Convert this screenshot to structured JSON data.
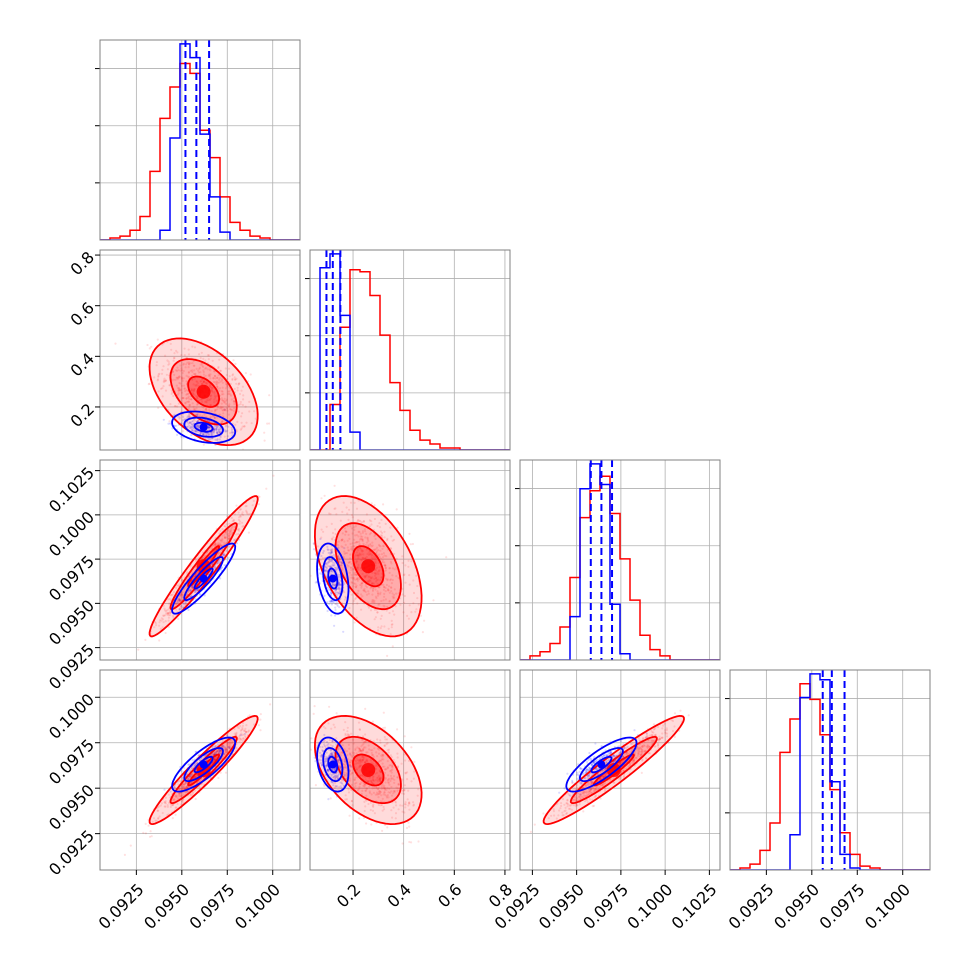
{
  "chart_data": {
    "type": "corner",
    "colors": {
      "series_a": "#ff0000",
      "series_b": "#0000ff",
      "grid": "#b0b0b0",
      "frame": "#808080"
    },
    "grid": true,
    "series": [
      {
        "color_key": "series_a",
        "style": "wide posterior (samples, filled contours, step histogram)"
      },
      {
        "color_key": "series_b",
        "style": "narrow posterior (samples, contours, step histogram with dashed quantile lines)"
      }
    ],
    "parameters": [
      {
        "range": [
          0.0905,
          0.1015
        ],
        "ticks": [
          "0.0925",
          "0.0950",
          "0.0975",
          "0.1000"
        ],
        "tick_values": [
          0.0925,
          0.095,
          0.0975,
          0.1
        ]
      },
      {
        "range": [
          0.03,
          0.82
        ],
        "ticks": [
          "0.2",
          "0.4",
          "0.6",
          "0.8"
        ],
        "tick_values": [
          0.2,
          0.4,
          0.6,
          0.8
        ]
      },
      {
        "range": [
          0.0918,
          0.1031
        ],
        "ticks": [
          "0.0925",
          "0.0950",
          "0.0975",
          "0.1000",
          "0.1025"
        ],
        "tick_values": [
          0.0925,
          0.095,
          0.0975,
          0.1,
          0.1025
        ]
      },
      {
        "range": [
          0.0905,
          0.1015
        ],
        "ticks": [
          "0.0925",
          "0.0950",
          "0.0975",
          "0.1000"
        ],
        "tick_values": [
          0.0925,
          0.095,
          0.0975,
          0.1
        ]
      }
    ],
    "histograms": [
      {
        "param": 0,
        "bins": [
          0.0905,
          0.1015,
          20
        ],
        "series_a": [
          0.0,
          0.01,
          0.02,
          0.05,
          0.12,
          0.35,
          0.62,
          0.78,
          0.9,
          0.85,
          0.56,
          0.42,
          0.22,
          0.09,
          0.05,
          0.02,
          0.01,
          0.0,
          0.0,
          0.0
        ],
        "series_b": [
          0.0,
          0.0,
          0.0,
          0.0,
          0.0,
          0.0,
          0.05,
          0.52,
          1.0,
          0.93,
          0.54,
          0.22,
          0.04,
          0.0,
          0.0,
          0.0,
          0.0,
          0.0,
          0.0,
          0.0
        ],
        "quantiles_b": [
          0.0952,
          0.0958,
          0.0965
        ]
      },
      {
        "param": 1,
        "bins": [
          0.03,
          0.82,
          20
        ],
        "series_a": [
          0.0,
          0.0,
          0.23,
          0.62,
          0.91,
          0.9,
          0.78,
          0.58,
          0.34,
          0.2,
          0.1,
          0.05,
          0.03,
          0.01,
          0.01,
          0.0,
          0.0,
          0.0,
          0.0,
          0.0
        ],
        "series_b": [
          0.0,
          0.92,
          0.99,
          0.68,
          0.09,
          0.0,
          0.0,
          0.0,
          0.0,
          0.0,
          0.0,
          0.0,
          0.0,
          0.0,
          0.0,
          0.0,
          0.0,
          0.0,
          0.0,
          0.0
        ],
        "quantiles_b": [
          0.095,
          0.12,
          0.15
        ]
      },
      {
        "param": 2,
        "bins": [
          0.0918,
          0.1031,
          20
        ],
        "series_a": [
          0.0,
          0.02,
          0.04,
          0.08,
          0.16,
          0.4,
          0.69,
          0.82,
          0.89,
          0.71,
          0.49,
          0.29,
          0.12,
          0.05,
          0.02,
          0.0,
          0.0,
          0.0,
          0.0,
          0.0
        ],
        "series_b": [
          0.0,
          0.0,
          0.0,
          0.0,
          0.0,
          0.21,
          0.83,
          0.95,
          0.85,
          0.27,
          0.03,
          0.0,
          0.0,
          0.0,
          0.0,
          0.0,
          0.0,
          0.0,
          0.0,
          0.0
        ],
        "quantiles_b": [
          0.0958,
          0.0964,
          0.097
        ]
      },
      {
        "param": 3,
        "bins": [
          0.0905,
          0.1015,
          20
        ],
        "series_a": [
          0.0,
          0.01,
          0.03,
          0.1,
          0.24,
          0.6,
          0.77,
          0.95,
          0.87,
          0.69,
          0.41,
          0.19,
          0.08,
          0.02,
          0.01,
          0.0,
          0.0,
          0.0,
          0.0,
          0.0
        ],
        "series_b": [
          0.0,
          0.0,
          0.0,
          0.0,
          0.0,
          0.0,
          0.18,
          0.88,
          1.0,
          0.97,
          0.45,
          0.08,
          0.01,
          0.0,
          0.0,
          0.0,
          0.0,
          0.0,
          0.0,
          0.0
        ],
        "quantiles_b": [
          0.0956,
          0.0961,
          0.0968
        ]
      }
    ],
    "pairs": [
      {
        "x": 0,
        "y": 1,
        "series_a": {
          "mean": [
            0.0962,
            0.26
          ],
          "sd": [
            0.0012,
            0.085
          ],
          "rho": -0.45
        },
        "series_b": {
          "mean": [
            0.0962,
            0.12
          ],
          "sd": [
            0.0007,
            0.025
          ],
          "rho": -0.3
        }
      },
      {
        "x": 0,
        "y": 2,
        "series_a": {
          "mean": [
            0.0962,
            0.0971
          ],
          "sd": [
            0.0012,
            0.0016
          ],
          "rho": 0.96
        },
        "series_b": {
          "mean": [
            0.0962,
            0.0964
          ],
          "sd": [
            0.0007,
            0.0008
          ],
          "rho": 0.9
        }
      },
      {
        "x": 1,
        "y": 2,
        "series_a": {
          "mean": [
            0.26,
            0.0971
          ],
          "sd": [
            0.085,
            0.0016
          ],
          "rho": -0.45
        },
        "series_b": {
          "mean": [
            0.12,
            0.0964
          ],
          "sd": [
            0.025,
            0.0008
          ],
          "rho": -0.3
        }
      },
      {
        "x": 0,
        "y": 3,
        "series_a": {
          "mean": [
            0.0962,
            0.096
          ],
          "sd": [
            0.0012,
            0.0012
          ],
          "rho": 0.95
        },
        "series_b": {
          "mean": [
            0.0962,
            0.0963
          ],
          "sd": [
            0.0007,
            0.0006
          ],
          "rho": 0.8
        }
      },
      {
        "x": 1,
        "y": 3,
        "series_a": {
          "mean": [
            0.26,
            0.096
          ],
          "sd": [
            0.085,
            0.0012
          ],
          "rho": -0.45
        },
        "series_b": {
          "mean": [
            0.12,
            0.0963
          ],
          "sd": [
            0.025,
            0.0006
          ],
          "rho": -0.3
        }
      },
      {
        "x": 2,
        "y": 3,
        "series_a": {
          "mean": [
            0.0971,
            0.096
          ],
          "sd": [
            0.0016,
            0.0012
          ],
          "rho": 0.95
        },
        "series_b": {
          "mean": [
            0.0964,
            0.0963
          ],
          "sd": [
            0.0008,
            0.0006
          ],
          "rho": 0.8
        }
      }
    ]
  }
}
